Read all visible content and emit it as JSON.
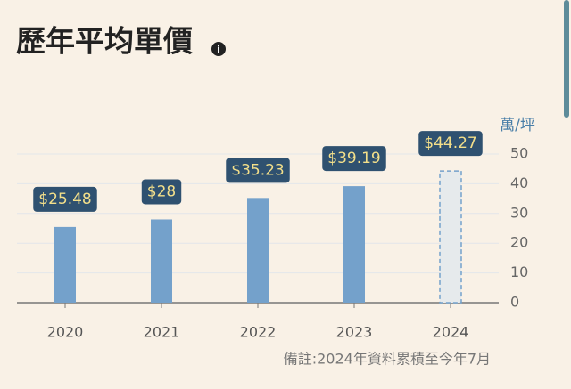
{
  "chart_data": {
    "type": "bar",
    "title": "歷年平均單價",
    "categories": [
      "2020",
      "2021",
      "2022",
      "2023",
      "2024"
    ],
    "values": [
      25.48,
      28,
      35.23,
      39.19,
      44.27
    ],
    "value_labels": [
      "$25.48",
      "$28",
      "$35.23",
      "$39.19",
      "$44.27"
    ],
    "bar_styles": [
      "solid",
      "solid",
      "solid",
      "solid",
      "dashed"
    ],
    "color": "#74a1cb",
    "y_axis_label": "萬/坪",
    "ylim": [
      0,
      50
    ],
    "yticks": [
      0,
      10,
      20,
      30,
      40,
      50
    ],
    "y_axis_side": "right",
    "grid": true,
    "note": "備註:2024年資料累積至今年7月"
  }
}
